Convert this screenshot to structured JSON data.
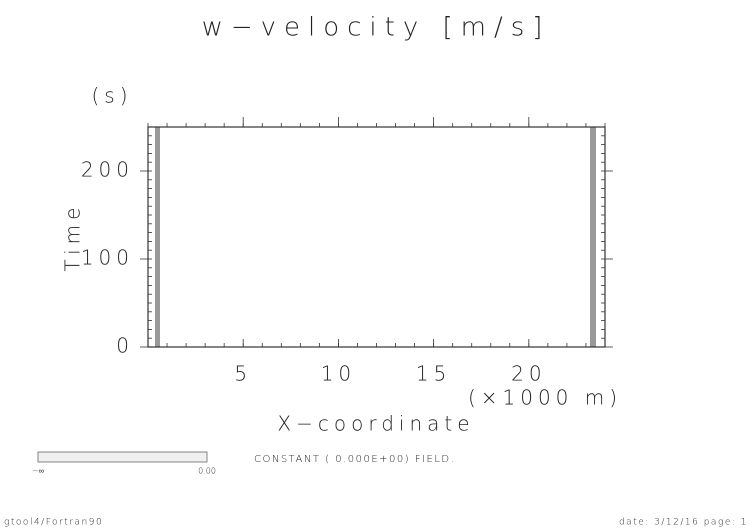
{
  "chart_data": {
    "type": "contour",
    "title": "w−velocity [m/s]",
    "x_label": "X−coordinate",
    "x_unit": "(×1000 m)",
    "y_label": "Time",
    "y_unit": "(s)",
    "xlim": [
      0,
      24
    ],
    "xticks": [
      5,
      10,
      15,
      20
    ],
    "xminor_step": 1,
    "ylim": [
      0,
      250
    ],
    "yticks": [
      0,
      100,
      200
    ],
    "yminor_step": 10,
    "annotation": "CONSTANT ( 0.000E+00) FIELD.",
    "colorbar_labels": [
      "−∞",
      "0.00"
    ],
    "footer_left": "gtool4/Fortran90",
    "footer_right": "date: 3/12/16 page: 1"
  }
}
